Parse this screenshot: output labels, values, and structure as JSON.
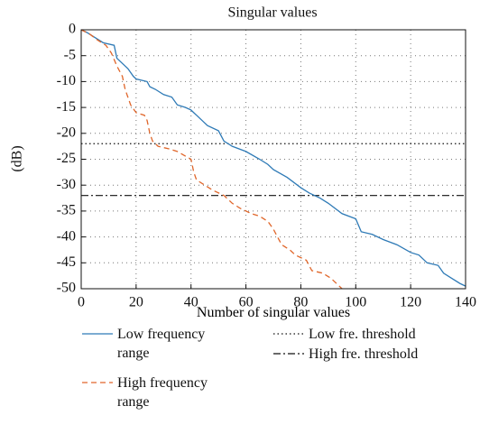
{
  "chart_data": {
    "type": "line",
    "title": "Singular values",
    "x_label": "Number of singular values",
    "y_label": "(dB)",
    "xlim": [
      0,
      140
    ],
    "xticks": [
      0,
      20,
      40,
      60,
      80,
      100,
      120,
      140
    ],
    "ylim": [
      -50,
      0
    ],
    "yticks": [
      0,
      -5,
      -10,
      -15,
      -20,
      -25,
      -30,
      -35,
      -40,
      -45,
      -50
    ],
    "grid": true,
    "series": [
      {
        "name": "Low frequency range",
        "color": "#2e7ab6",
        "dash": "solid",
        "x": [
          0,
          2,
          5,
          8,
          12,
          13,
          15,
          17,
          19,
          20,
          24,
          25,
          27,
          30,
          33,
          35,
          38,
          40,
          42,
          44,
          46,
          50,
          52,
          55,
          60,
          65,
          68,
          70,
          75,
          80,
          83,
          87,
          90,
          95,
          100,
          102,
          106,
          110,
          115,
          120,
          123,
          126,
          130,
          132,
          135,
          138,
          140
        ],
        "values": [
          0,
          -0.5,
          -1.5,
          -2.5,
          -3,
          -5.5,
          -6.5,
          -7.5,
          -9,
          -9.5,
          -10,
          -11,
          -11.5,
          -12.5,
          -13,
          -14.5,
          -15,
          -15.5,
          -16.5,
          -17.5,
          -18.5,
          -19.5,
          -21.5,
          -22.5,
          -23.5,
          -25,
          -26,
          -27,
          -28.5,
          -30.5,
          -31.5,
          -32.5,
          -33.5,
          -35.5,
          -36.5,
          -39,
          -39.5,
          -40.5,
          -41.5,
          -43,
          -43.5,
          -45,
          -45.5,
          -47,
          -48,
          -49,
          -49.5
        ]
      },
      {
        "name": "High frequency range",
        "color": "#e0662a",
        "dash": "dashed",
        "x": [
          0,
          3,
          6,
          9,
          11,
          13,
          15,
          16,
          17,
          18,
          20,
          23,
          24,
          25,
          26,
          28,
          32,
          35,
          40,
          41,
          42,
          45,
          48,
          52,
          55,
          58,
          62,
          65,
          68,
          70,
          73,
          76,
          78,
          82,
          84,
          88,
          91,
          93,
          95
        ],
        "values": [
          0,
          -0.8,
          -2,
          -3,
          -4.5,
          -7,
          -9,
          -11.5,
          -13,
          -14.5,
          -16,
          -16.5,
          -17.5,
          -20,
          -21.5,
          -22.5,
          -23,
          -23.5,
          -25,
          -27.5,
          -29,
          -30,
          -31,
          -32,
          -33.5,
          -34.5,
          -35.5,
          -36,
          -37,
          -38.5,
          -41.5,
          -42.5,
          -43.5,
          -44.5,
          -46.5,
          -47,
          -48,
          -49,
          -50
        ]
      }
    ],
    "thresholds": [
      {
        "name": "Low fre. threshold",
        "value": -22,
        "color": "#111111",
        "dash": "dotted"
      },
      {
        "name": "High fre. threshold",
        "value": -32,
        "color": "#111111",
        "dash": "dashdot"
      }
    ]
  }
}
